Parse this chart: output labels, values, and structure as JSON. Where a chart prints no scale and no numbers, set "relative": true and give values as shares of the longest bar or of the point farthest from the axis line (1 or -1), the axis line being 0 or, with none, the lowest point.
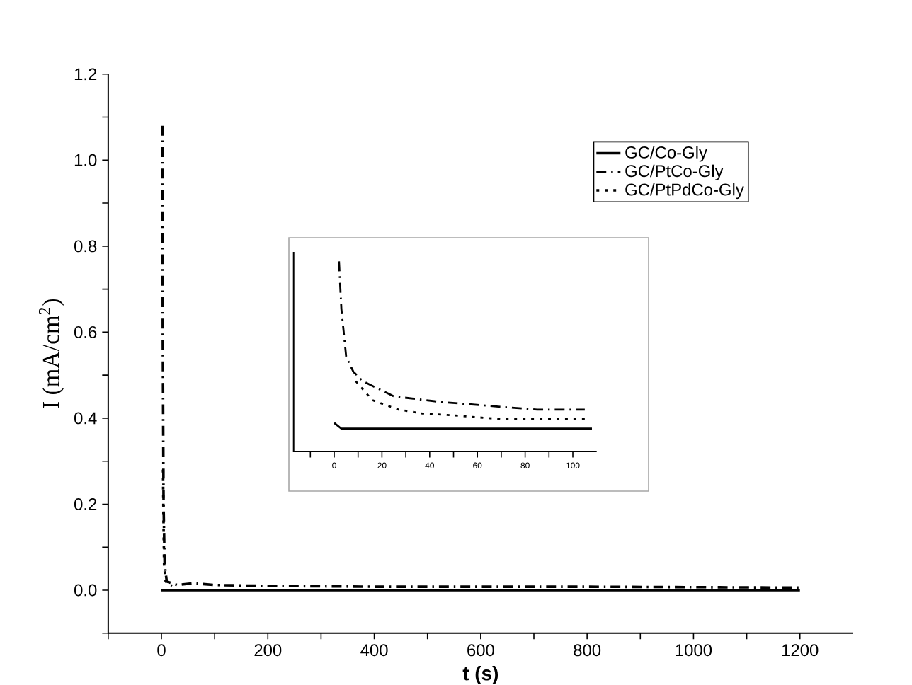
{
  "chart_data": [
    {
      "type": "line",
      "xlabel": "t (s)",
      "ylabel": "I (mA/cm$^{2}$)",
      "xlim": [
        -100,
        1300
      ],
      "ylim": [
        -0.1,
        1.2
      ],
      "xticks": [
        {
          "value": -100,
          "label": null
        },
        0,
        {
          "value": 100,
          "label": null
        },
        200,
        {
          "value": 300,
          "label": null
        },
        400,
        {
          "value": 500,
          "label": null
        },
        600,
        {
          "value": 700,
          "label": null
        },
        800,
        {
          "value": 900,
          "label": null
        },
        1000,
        {
          "value": 1100,
          "label": null
        },
        1200
      ],
      "yticks": [
        {
          "value": -0.1,
          "label": null
        },
        {
          "value": 0,
          "label": "0.0"
        },
        {
          "value": 0.1,
          "label": null
        },
        0.2,
        {
          "value": 0.3,
          "label": null
        },
        0.4,
        {
          "value": 0.5,
          "label": null
        },
        0.6,
        {
          "value": 0.7,
          "label": null
        },
        0.8,
        {
          "value": 0.9,
          "label": null
        },
        {
          "value": 1.0,
          "label": "1.0"
        },
        {
          "value": 1.1,
          "label": null
        },
        1.2
      ],
      "legend": "top right",
      "marker": "none",
      "series": [
        {
          "name": "GC/Co-Gly",
          "color": "#000000",
          "line_style": "solid",
          "x": [
            0,
            1200
          ],
          "values": [
            0,
            0
          ]
        },
        {
          "name": "GC/PtCo-Gly",
          "color": "#000000",
          "line_style": "dashed",
          "x": [
            2,
            2.5,
            4,
            6,
            10,
            30,
            60,
            100,
            200,
            400,
            600,
            800,
            1000,
            1200
          ],
          "values": [
            1.08,
            0.6,
            0.2,
            0.06,
            0.02,
            0.012,
            0.016,
            0.012,
            0.01,
            0.008,
            0.008,
            0.008,
            0.007,
            0.006
          ]
        },
        {
          "name": "GC/PtPdCo-Gly",
          "color": "#000000",
          "line_style": "dotted",
          "x": [
            3,
            4,
            5,
            8,
            20
          ],
          "values": [
            0.28,
            0.15,
            0.06,
            0.02,
            0.01
          ]
        }
      ]
    },
    {
      "type": "line",
      "relative": true,
      "xlim": [
        -17,
        110
      ],
      "marker": "none",
      "xticks": [
        {
          "value": -10,
          "label": null
        },
        0,
        {
          "value": 10,
          "label": null
        },
        20,
        {
          "value": 30,
          "label": null
        },
        40,
        {
          "value": 50,
          "label": null
        },
        60,
        {
          "value": 70,
          "label": null
        },
        80,
        {
          "value": 90,
          "label": null
        },
        100
      ],
      "series": [
        {
          "color": "#000000",
          "line_style": "solid",
          "x": [
            0,
            3,
            108
          ],
          "values": [
            0.15,
            0.12,
            0.12
          ]
        },
        {
          "color": "#000000",
          "line_style": "dashed",
          "x": [
            2,
            3,
            5,
            8,
            12,
            25,
            45,
            65,
            85,
            105
          ],
          "values": [
            1.0,
            0.75,
            0.5,
            0.42,
            0.37,
            0.29,
            0.26,
            0.24,
            0.22,
            0.22
          ]
        },
        {
          "color": "#000000",
          "line_style": "dotted",
          "x": [
            9,
            16,
            27,
            37,
            50,
            70,
            90,
            105
          ],
          "values": [
            0.37,
            0.27,
            0.22,
            0.2,
            0.19,
            0.17,
            0.17,
            0.17
          ]
        }
      ]
    }
  ]
}
